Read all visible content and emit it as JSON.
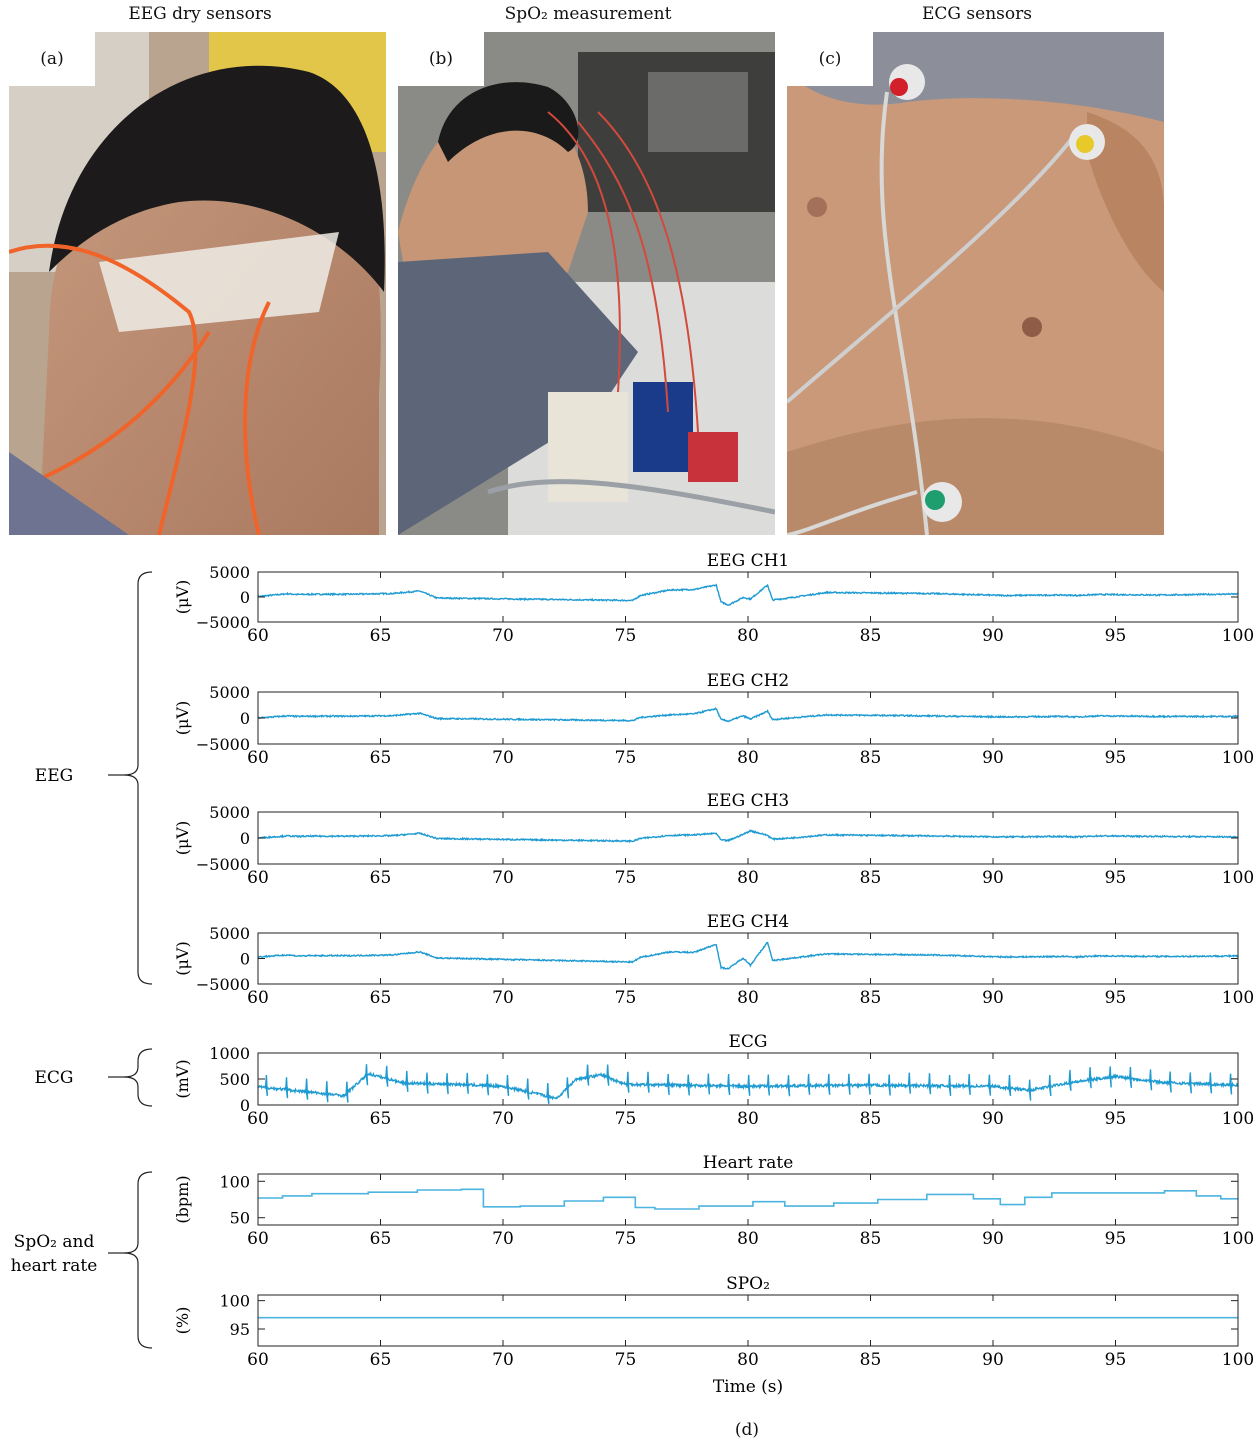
{
  "photos": [
    {
      "id": "a",
      "tag": "(a)",
      "title": "EEG dry sensors"
    },
    {
      "id": "b",
      "tag": "(b)",
      "title": "SpO₂ measurement"
    },
    {
      "id": "c",
      "tag": "(c)",
      "title": "ECG sensors"
    }
  ],
  "panel_d_label": "(d)",
  "groups": [
    {
      "label_lines": [
        "EEG"
      ]
    },
    {
      "label_lines": [
        "ECG"
      ]
    },
    {
      "label_lines": [
        "SpO₂ and",
        "heart rate"
      ]
    }
  ],
  "colors": {
    "trace": "#1f9bd1",
    "trace_light": "#4cb4e0",
    "axis": "#222222"
  },
  "chart_data": [
    {
      "type": "line",
      "title": "EEG CH1",
      "ylabel": "(μV)",
      "xlim": [
        60,
        100
      ],
      "ylim": [
        -5000,
        5000
      ],
      "yticks": [
        5000,
        0,
        -5000
      ],
      "ytick_labels": [
        "5000",
        "0",
        "−5000"
      ],
      "xticks": [
        60,
        65,
        70,
        75,
        80,
        85,
        90,
        95,
        100
      ],
      "x": [
        60,
        61.2,
        61.6,
        62.2,
        63.7,
        65.5,
        66.6,
        67.3,
        75.3,
        75.6,
        76.8,
        77.8,
        78.7,
        78.9,
        79.2,
        79.8,
        80.1,
        80.8,
        81.0,
        81.5,
        83.2,
        87.4,
        90.5,
        92.8,
        93.4,
        94.3,
        96.9,
        100
      ],
      "y": [
        100,
        650,
        500,
        550,
        550,
        700,
        1200,
        -200,
        -700,
        300,
        1400,
        1500,
        2400,
        -1000,
        -1600,
        -100,
        -400,
        2400,
        -600,
        -300,
        900,
        700,
        300,
        400,
        300,
        500,
        400,
        600
      ]
    },
    {
      "type": "line",
      "title": "EEG CH2",
      "ylabel": "(μV)",
      "xlim": [
        60,
        100
      ],
      "ylim": [
        -5000,
        5000
      ],
      "yticks": [
        5000,
        0,
        -5000
      ],
      "ytick_labels": [
        "5000",
        "0",
        "−5000"
      ],
      "xticks": [
        60,
        65,
        70,
        75,
        80,
        85,
        90,
        95,
        100
      ],
      "x": [
        60,
        61.2,
        61.6,
        62.2,
        63.7,
        65.5,
        66.6,
        67.3,
        75.3,
        75.6,
        76.8,
        77.8,
        78.7,
        78.9,
        79.2,
        79.8,
        80.1,
        80.8,
        81.0,
        81.5,
        83.2,
        87.4,
        90.5,
        92.8,
        93.4,
        94.3,
        96.9,
        100
      ],
      "y": [
        0,
        400,
        300,
        350,
        350,
        450,
        900,
        -100,
        -500,
        100,
        600,
        800,
        1800,
        -300,
        -600,
        400,
        -200,
        1300,
        -300,
        -100,
        600,
        400,
        200,
        300,
        200,
        400,
        300,
        300
      ]
    },
    {
      "type": "line",
      "title": "EEG CH3",
      "ylabel": "(μV)",
      "xlim": [
        60,
        100
      ],
      "ylim": [
        -5000,
        5000
      ],
      "yticks": [
        5000,
        0,
        -5000
      ],
      "ytick_labels": [
        "5000",
        "0",
        "−5000"
      ],
      "xticks": [
        60,
        65,
        70,
        75,
        80,
        85,
        90,
        95,
        100
      ],
      "x": [
        60,
        61.2,
        61.6,
        62.2,
        63.7,
        65.5,
        66.6,
        67.3,
        75.3,
        75.6,
        76.8,
        77.8,
        78.7,
        78.9,
        79.2,
        79.8,
        80.1,
        80.8,
        81.0,
        81.5,
        83.2,
        87.4,
        90.5,
        92.8,
        93.4,
        94.3,
        96.9,
        100
      ],
      "y": [
        0,
        400,
        300,
        350,
        350,
        450,
        900,
        -100,
        -600,
        -100,
        500,
        600,
        900,
        -400,
        -500,
        700,
        1400,
        500,
        -200,
        -100,
        600,
        400,
        200,
        300,
        200,
        400,
        300,
        200
      ]
    },
    {
      "type": "line",
      "title": "EEG CH4",
      "ylabel": "(μV)",
      "xlim": [
        60,
        100
      ],
      "ylim": [
        -5000,
        5000
      ],
      "yticks": [
        5000,
        0,
        -5000
      ],
      "ytick_labels": [
        "5000",
        "0",
        "−5000"
      ],
      "xticks": [
        60,
        65,
        70,
        75,
        80,
        85,
        90,
        95,
        100
      ],
      "x": [
        60,
        61.2,
        61.6,
        62.2,
        63.7,
        65.5,
        66.6,
        67.3,
        75.3,
        75.6,
        76.8,
        77.8,
        78.7,
        78.9,
        79.2,
        79.8,
        80.1,
        80.8,
        81.0,
        81.5,
        83.2,
        87.4,
        90.5,
        92.8,
        93.4,
        94.3,
        96.9,
        100
      ],
      "y": [
        300,
        700,
        500,
        550,
        550,
        700,
        1300,
        100,
        -700,
        200,
        1300,
        1200,
        2800,
        -1800,
        -2000,
        100,
        -1300,
        3200,
        -400,
        -100,
        900,
        700,
        300,
        400,
        300,
        500,
        400,
        500
      ]
    },
    {
      "type": "line",
      "title": "ECG",
      "ylabel": "(mV)",
      "xlim": [
        60,
        100
      ],
      "ylim": [
        0,
        1000
      ],
      "yticks": [
        1000,
        500,
        0
      ],
      "ytick_labels": [
        "1000",
        "500",
        "0"
      ],
      "xticks": [
        60,
        65,
        70,
        75,
        80,
        85,
        90,
        95,
        100
      ],
      "x": [
        60,
        63.5,
        64.5,
        66,
        68,
        70,
        72.2,
        73,
        74,
        75,
        80,
        85,
        90,
        91.5,
        93,
        95,
        97,
        100
      ],
      "y": [
        350,
        180,
        600,
        420,
        400,
        360,
        130,
        500,
        580,
        400,
        360,
        380,
        360,
        280,
        420,
        550,
        430,
        380
      ],
      "beat_interval_s": 0.82,
      "beat_amplitude": 230
    },
    {
      "type": "line",
      "title": "Heart rate",
      "ylabel": "(bpm)",
      "xlim": [
        60,
        100
      ],
      "ylim": [
        40,
        110
      ],
      "yticks": [
        100,
        50
      ],
      "ytick_labels": [
        "100",
        "50"
      ],
      "xticks": [
        60,
        65,
        70,
        75,
        80,
        85,
        90,
        95,
        100
      ],
      "x": [
        60,
        61,
        62.2,
        64.5,
        66.5,
        68.3,
        69.2,
        70.7,
        72.5,
        74.1,
        75.4,
        76.2,
        78,
        80.2,
        81.5,
        83.5,
        85.3,
        87.3,
        89.2,
        90.3,
        91.3,
        92.4,
        94,
        97,
        98.3,
        99.3,
        100
      ],
      "y": [
        77,
        80,
        83,
        85,
        88,
        89,
        65,
        66,
        73,
        78,
        64,
        62,
        66,
        72,
        66,
        70,
        75,
        82,
        76,
        68,
        78,
        84,
        84,
        87,
        80,
        76,
        76
      ],
      "step": true
    },
    {
      "type": "line",
      "title": "SPO₂",
      "ylabel": "(%)",
      "xlim": [
        60,
        100
      ],
      "ylim": [
        92,
        101
      ],
      "yticks": [
        100,
        95
      ],
      "ytick_labels": [
        "100",
        "95"
      ],
      "xticks": [
        60,
        65,
        70,
        75,
        80,
        85,
        90,
        95,
        100
      ],
      "x": [
        60,
        100
      ],
      "y": [
        97,
        97
      ],
      "xlabel": "Time (s)"
    }
  ]
}
